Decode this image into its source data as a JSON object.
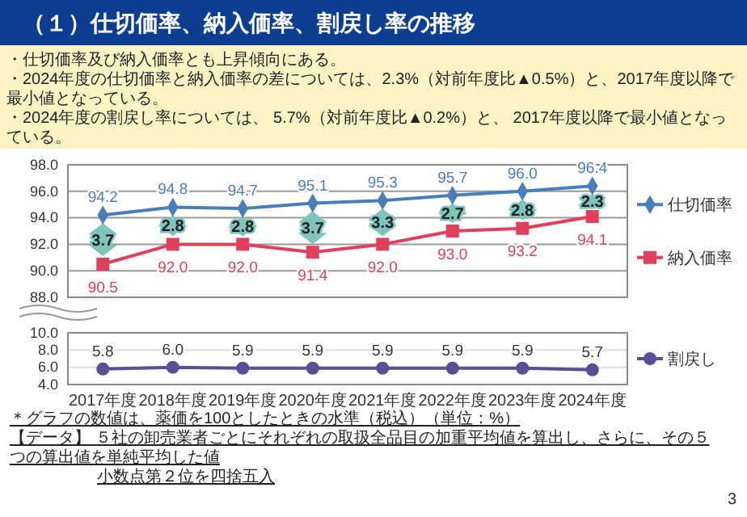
{
  "chart_data": [
    {
      "type": "line",
      "title": "（１）仕切価率、納入価率、割戻し率の推移",
      "categories": [
        "2017年度",
        "2018年度",
        "2019年度",
        "2020年度",
        "2021年度",
        "2022年度",
        "2023年度",
        "2024年度"
      ],
      "series": [
        {
          "name": "仕切価率",
          "color": "#4a7ebb",
          "marker": "diamond",
          "values": [
            94.2,
            94.8,
            94.7,
            95.1,
            95.3,
            95.7,
            96.0,
            96.4
          ],
          "value_labels": [
            "94.2",
            "94.8",
            "94.7",
            "95.1",
            "95.3",
            "95.7",
            "96.0",
            "96.4"
          ]
        },
        {
          "name": "納入価率",
          "color": "#e0405a",
          "marker": "square",
          "values": [
            90.5,
            92.0,
            92.0,
            91.4,
            92.0,
            93.0,
            93.2,
            94.1
          ],
          "value_labels": [
            "90.5",
            "92.0",
            "92.0",
            "91.4",
            "92.0",
            "93.0",
            "93.2",
            "94.1"
          ]
        }
      ],
      "annotations": [
        "・仕切価率及び納入価率とも上昇傾向にある。",
        "・2024年度の仕切価率と納入価率の差については、2.3%（対前年度比▲0.5%）と、2017年度以降で最小値となっている。",
        "・2024年度の割戻し率については、 5.7%（対前年度比▲0.2%）と、 2017年度以降で最小値となっている。",
        {
          "text": "3.7",
          "x": "2017年度",
          "y": 92.35
        },
        {
          "text": "2.8",
          "x": "2018年度",
          "y": 93.4
        },
        {
          "text": "2.8",
          "x": "2019年度",
          "y": 93.35
        },
        {
          "text": "3.7",
          "x": "2020年度",
          "y": 93.25
        },
        {
          "text": "3.3",
          "x": "2021年度",
          "y": 93.65
        },
        {
          "text": "2.7",
          "x": "2022年度",
          "y": 94.35
        },
        {
          "text": "2.8",
          "x": "2023年度",
          "y": 94.6
        },
        {
          "text": "2.3",
          "x": "2024年度",
          "y": 95.25
        }
      ],
      "ylim": [
        88,
        98
      ],
      "yticks": [
        {
          "value": 88,
          "label": "88.0"
        },
        {
          "value": 90,
          "label": "90.0"
        },
        {
          "value": 92,
          "label": "92.0"
        },
        {
          "value": 94,
          "label": "94.0"
        },
        {
          "value": 96,
          "label": "96.0"
        },
        {
          "value": 98,
          "label": "98.0"
        }
      ],
      "grid": "y",
      "legend": "right",
      "tick_labels": "y"
    },
    {
      "type": "line",
      "categories": [
        "2017年度",
        "2018年度",
        "2019年度",
        "2020年度",
        "2021年度",
        "2022年度",
        "2023年度",
        "2024年度"
      ],
      "series": [
        {
          "name": "割戻し",
          "color": "#5b4e96",
          "marker": "circle",
          "values": [
            5.8,
            6.0,
            5.9,
            5.9,
            5.9,
            5.9,
            5.9,
            5.7
          ],
          "value_labels": [
            "5.8",
            "6.0",
            "5.9",
            "5.9",
            "5.9",
            "5.9",
            "5.9",
            "5.7"
          ]
        }
      ],
      "annotations": [
        "＊グラフの数値は、薬価を100としたときの水準（税込）（単位：%）",
        "【データ】 ５社の卸売業者ごとにそれぞれの取扱全品目の加重平均値を算出し、さらに、その５つの算出値を単純平均した値",
        "小数点第２位を四捨五入",
        "3"
      ],
      "ylim": [
        4,
        10
      ],
      "yticks": [
        {
          "value": 4,
          "label": "4.0"
        },
        {
          "value": 6,
          "label": "6.0"
        },
        {
          "value": 8,
          "label": "8.0"
        },
        {
          "value": 10,
          "label": "10.0"
        }
      ],
      "grid": "y",
      "legend": "right"
    }
  ]
}
